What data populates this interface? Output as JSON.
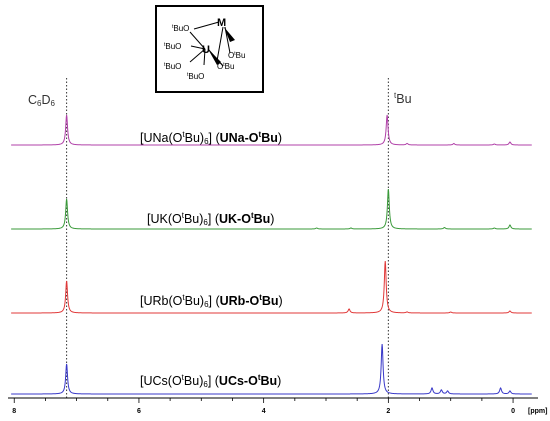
{
  "chart_data": {
    "type": "line",
    "x_axis": {
      "ticks": [
        "8",
        "6",
        "4",
        "2",
        "0"
      ],
      "tick_values": [
        8,
        6,
        4,
        2,
        0
      ],
      "unit_label": "[ppm]",
      "reversed": true,
      "xlim": [
        8.1,
        -0.4
      ]
    },
    "reference_lines": [
      {
        "label_main": "C",
        "label_sub1": "6",
        "label_mid": "D",
        "label_sub2": "6",
        "x": 7.16
      },
      {
        "label_sup": "t",
        "label_main": "Bu",
        "x": 2.0
      }
    ],
    "series": [
      {
        "prefix": "[UNa(O",
        "sup": "t",
        "mid": "Bu)",
        "sub": "6",
        "paren_open": "] (",
        "code": "UNa-O",
        "code_sup": "t",
        "code_end": "Bu",
        "paren_close": ")",
        "color": "#b040a8",
        "peaks": [
          {
            "x": 7.16,
            "h": 30
          },
          {
            "x": 2.02,
            "h": 30
          },
          {
            "x": 1.7,
            "h": 1.5
          },
          {
            "x": 0.95,
            "h": 1.5
          },
          {
            "x": 0.3,
            "h": 1
          },
          {
            "x": 0.05,
            "h": 3
          }
        ]
      },
      {
        "prefix": "[UK(O",
        "sup": "t",
        "mid": "Bu)",
        "sub": "6",
        "paren_open": "] (",
        "code": "UK-O",
        "code_sup": "t",
        "code_end": "Bu",
        "paren_close": ")",
        "color": "#3a9a3a",
        "peaks": [
          {
            "x": 7.16,
            "h": 30
          },
          {
            "x": 2.0,
            "h": 40
          },
          {
            "x": 3.15,
            "h": 1
          },
          {
            "x": 2.6,
            "h": 1
          },
          {
            "x": 1.1,
            "h": 1.5
          },
          {
            "x": 0.3,
            "h": 1
          },
          {
            "x": 0.05,
            "h": 4
          }
        ]
      },
      {
        "prefix": "[URb(O",
        "sup": "t",
        "mid": "Bu)",
        "sub": "6",
        "paren_open": "] (",
        "code": "URb-O",
        "code_sup": "t",
        "code_end": "Bu",
        "paren_close": ")",
        "color": "#e03838",
        "peaks": [
          {
            "x": 7.16,
            "h": 32
          },
          {
            "x": 2.05,
            "h": 52
          },
          {
            "x": 2.63,
            "h": 4
          },
          {
            "x": 1.7,
            "h": 1
          },
          {
            "x": 1.0,
            "h": 1
          },
          {
            "x": 0.05,
            "h": 2
          }
        ]
      },
      {
        "prefix": "[UCs(O",
        "sup": "t",
        "mid": "Bu)",
        "sub": "6",
        "paren_open": "] (",
        "code": "UCs-O",
        "code_sup": "t",
        "code_end": "Bu",
        "paren_close": ")",
        "color": "#3838c8",
        "peaks": [
          {
            "x": 7.16,
            "h": 30
          },
          {
            "x": 2.1,
            "h": 50
          },
          {
            "x": 1.3,
            "h": 6
          },
          {
            "x": 1.15,
            "h": 4
          },
          {
            "x": 1.05,
            "h": 3
          },
          {
            "x": 0.2,
            "h": 6
          },
          {
            "x": 0.05,
            "h": 3
          }
        ]
      }
    ]
  },
  "structure": {
    "metal": "M",
    "center": "U",
    "ligands": [
      {
        "sup": "t",
        "text": "BuO"
      },
      {
        "sup": "t",
        "text": "BuO"
      },
      {
        "sup": "t",
        "text": "BuO"
      },
      {
        "sup": "t",
        "text": "BuO"
      },
      {
        "pre": "O",
        "sup": "t",
        "text": "Bu"
      },
      {
        "pre": "O",
        "sup": "t",
        "text": "Bu"
      }
    ]
  },
  "colors": {
    "axis": "#000000",
    "reference_line": "#333333"
  }
}
